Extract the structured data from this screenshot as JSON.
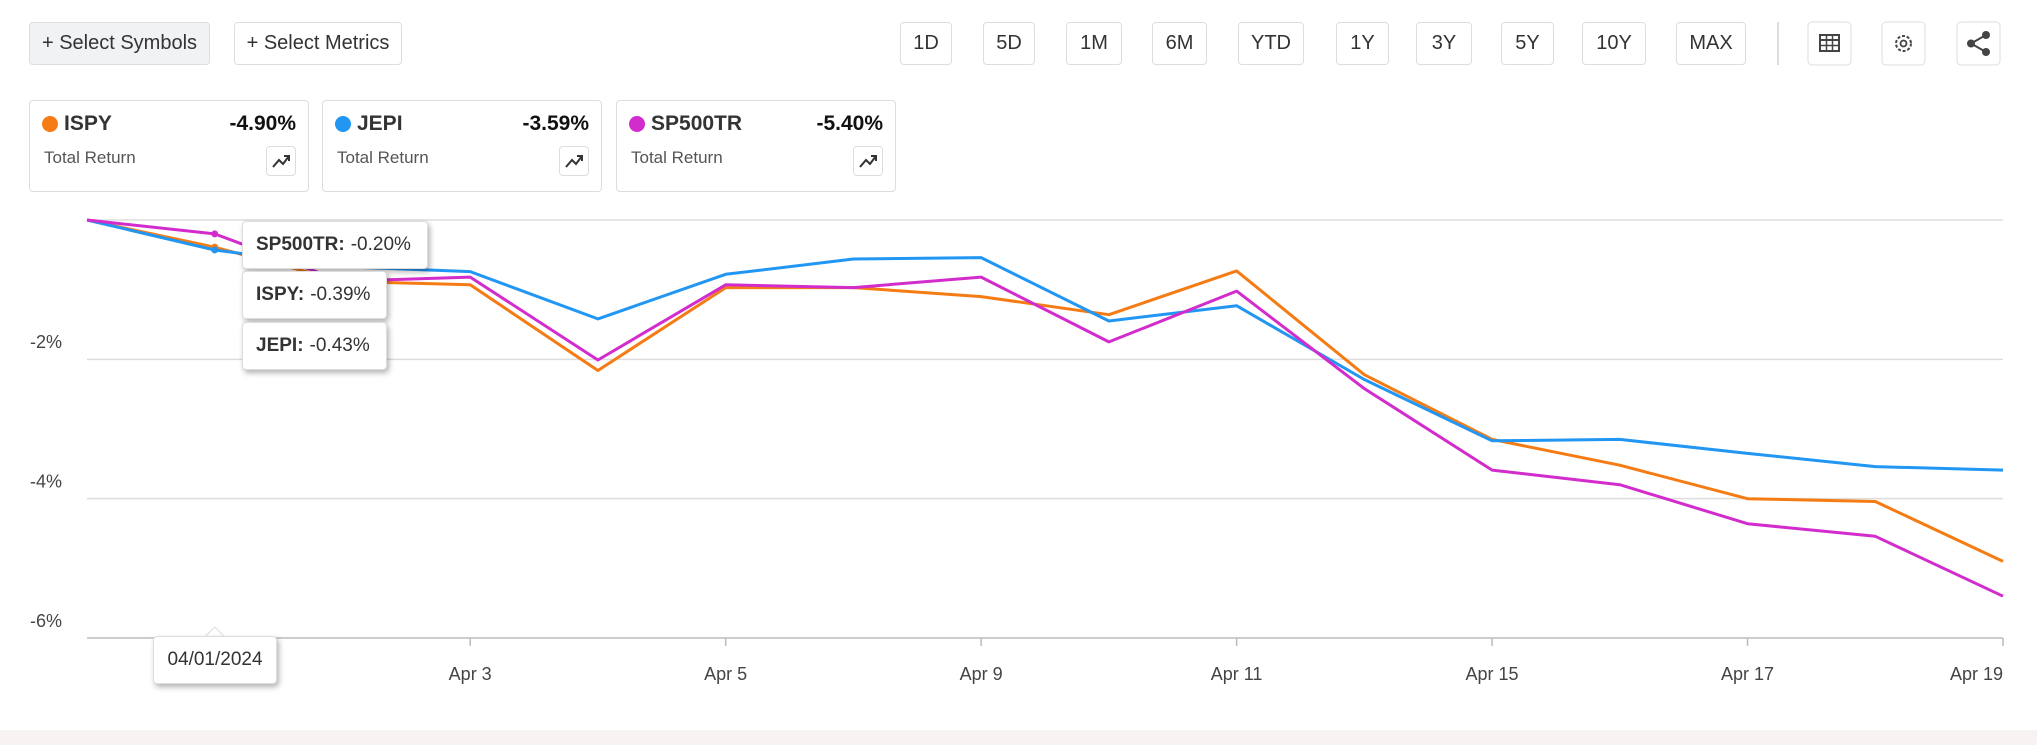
{
  "toolbar": {
    "symbols": "+ Select Symbols",
    "metrics": "+ Select Metrics",
    "ranges": [
      "1D",
      "5D",
      "1M",
      "6M",
      "YTD",
      "1Y",
      "3Y",
      "5Y",
      "10Y",
      "MAX"
    ]
  },
  "chart_data": {
    "type": "line",
    "metric_label": "Total Return",
    "categories": [
      null,
      null,
      null,
      "Apr 3",
      null,
      "Apr 5",
      null,
      "Apr 9",
      null,
      "Apr 11",
      null,
      "Apr 15",
      null,
      "Apr 17",
      null,
      "Apr 19"
    ],
    "series": [
      {
        "name": "ISPY",
        "color": "#f57c14",
        "total_return": {
          "value": -4.9,
          "label": "-4.90%"
        },
        "values": [
          0,
          -0.39,
          -0.88,
          -0.93,
          -2.16,
          -0.97,
          -0.97,
          -1.1,
          -1.36,
          -0.73,
          -2.22,
          -3.15,
          -3.52,
          -4.0,
          -4.04,
          -4.9
        ]
      },
      {
        "name": "JEPI",
        "color": "#2196f3",
        "total_return": {
          "value": -3.59,
          "label": "-3.59%"
        },
        "values": [
          0,
          -0.43,
          -0.67,
          -0.74,
          -1.42,
          -0.78,
          -0.56,
          -0.54,
          -1.45,
          -1.23,
          -2.29,
          -3.17,
          -3.15,
          -3.35,
          -3.54,
          -3.59
        ]
      },
      {
        "name": "SP500TR",
        "color": "#d22ccd",
        "total_return": {
          "value": -5.4,
          "label": "-5.40%"
        },
        "values": [
          0,
          -0.2,
          -0.88,
          -0.82,
          -2.01,
          -0.93,
          -0.97,
          -0.82,
          -1.75,
          -1.02,
          -2.42,
          -3.59,
          -3.8,
          -4.36,
          -4.54,
          -5.4
        ]
      }
    ],
    "ylim": [
      -6,
      0
    ],
    "yticks": [
      {
        "value": -6,
        "label": "-6%"
      },
      {
        "value": -4,
        "label": "-4%"
      },
      {
        "value": -2,
        "label": "-2%"
      }
    ],
    "grid": true,
    "tooltip": {
      "date": "04/01/2024",
      "items": [
        {
          "name": "SP500TR:",
          "value": "-0.20%"
        },
        {
          "name": "ISPY:",
          "value": "-0.39%"
        },
        {
          "name": "JEPI:",
          "value": "-0.43%"
        }
      ]
    }
  }
}
